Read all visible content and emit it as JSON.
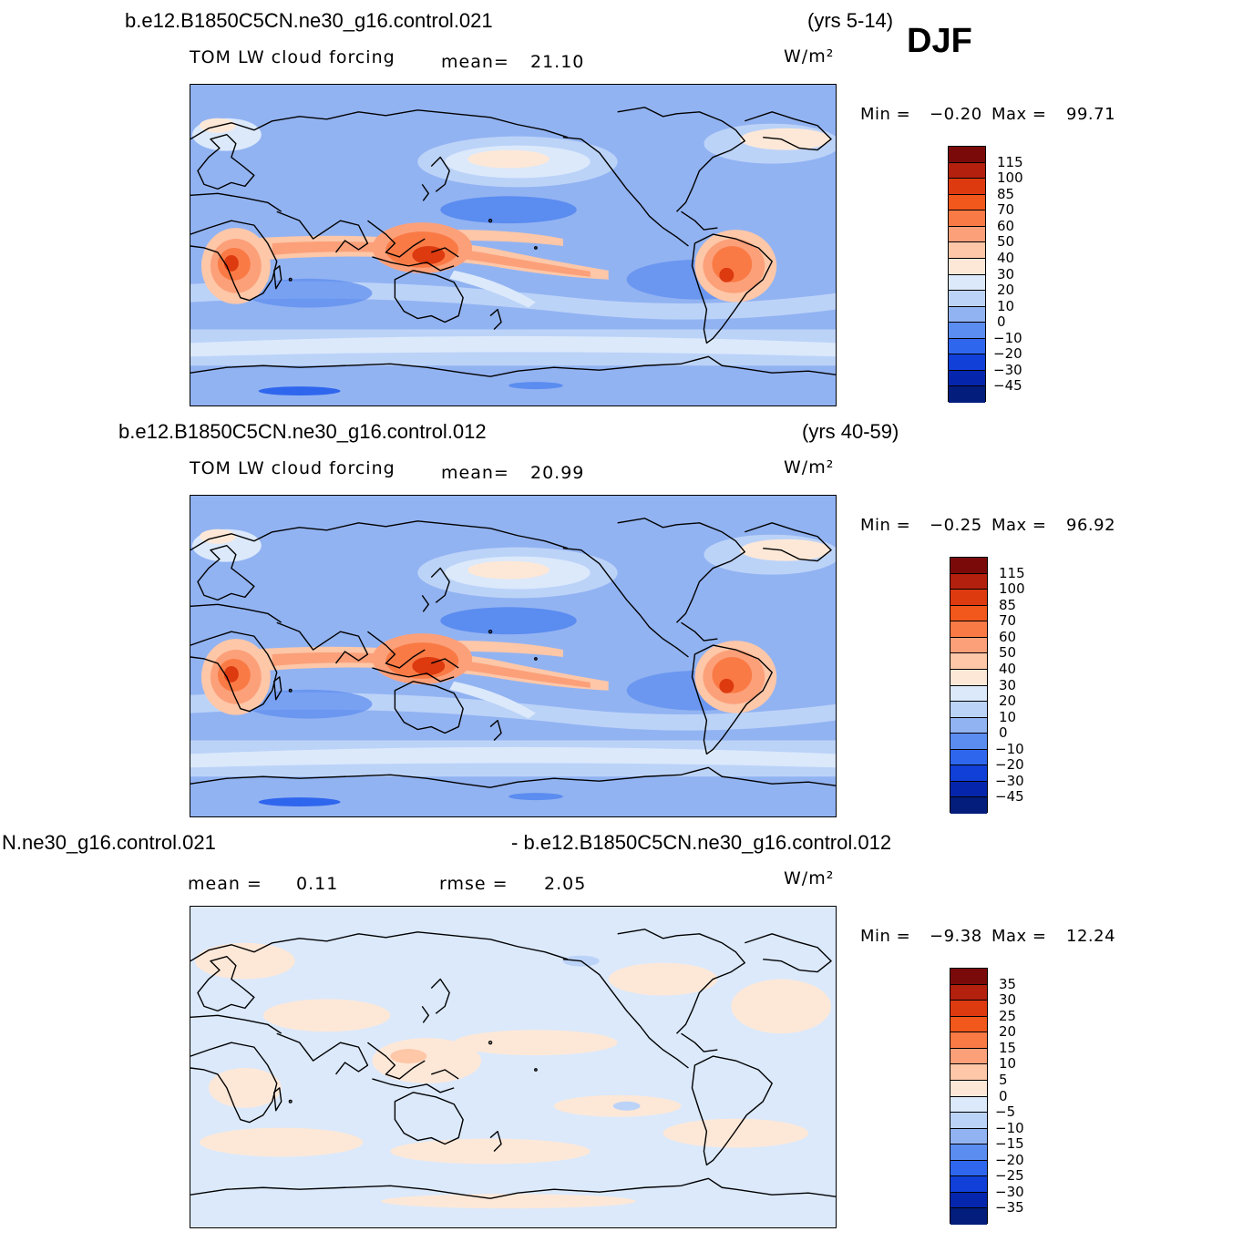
{
  "season": "DJF",
  "panels": [
    {
      "case": "b.e12.B1850C5CN.ne30_g16.control.021",
      "years": "(yrs 5-14)",
      "variable": "TOM LW cloud forcing",
      "mean_label": "mean=",
      "mean_value": "21.10",
      "units": "W/m²",
      "min_label": "Min =",
      "min_value": "−0.20",
      "max_label": "Max =",
      "max_value": "99.71",
      "colorbar": {
        "labels": [
          "115",
          "100",
          "85",
          "70",
          "60",
          "50",
          "40",
          "30",
          "20",
          "10",
          "0",
          "−10",
          "−20",
          "−30",
          "−45"
        ],
        "colors": [
          "#7a0a0a",
          "#b3200e",
          "#dd3a10",
          "#f2571c",
          "#fa7a45",
          "#fca07a",
          "#fdc7a8",
          "#fde8d8",
          "#dbe9fb",
          "#bcd3f8",
          "#92b3f2",
          "#5b8cf0",
          "#2f66ee",
          "#1040d8",
          "#0526ac",
          "#031d7c"
        ]
      }
    },
    {
      "case": "b.e12.B1850C5CN.ne30_g16.control.012",
      "years": "(yrs 40-59)",
      "variable": "TOM LW cloud forcing",
      "mean_label": "mean=",
      "mean_value": "20.99",
      "units": "W/m²",
      "min_label": "Min =",
      "min_value": "−0.25",
      "max_label": "Max =",
      "max_value": "96.92",
      "colorbar": {
        "labels": [
          "115",
          "100",
          "85",
          "70",
          "60",
          "50",
          "40",
          "30",
          "20",
          "10",
          "0",
          "−10",
          "−20",
          "−30",
          "−45"
        ],
        "colors": [
          "#7a0a0a",
          "#b3200e",
          "#dd3a10",
          "#f2571c",
          "#fa7a45",
          "#fca07a",
          "#fdc7a8",
          "#fde8d8",
          "#dbe9fb",
          "#bcd3f8",
          "#92b3f2",
          "#5b8cf0",
          "#2f66ee",
          "#1040d8",
          "#0526ac",
          "#031d7c"
        ]
      }
    },
    {
      "case_left": "N.ne30_g16.control.021",
      "case_right": "- b.e12.B1850C5CN.ne30_g16.control.012",
      "mean_label": "mean =",
      "mean_value": "0.11",
      "rmse_label": "rmse =",
      "rmse_value": "2.05",
      "units": "W/m²",
      "min_label": "Min =",
      "min_value": "−9.38",
      "max_label": "Max =",
      "max_value": "12.24",
      "colorbar": {
        "labels": [
          "35",
          "30",
          "25",
          "20",
          "15",
          "10",
          "5",
          "0",
          "−5",
          "−10",
          "−15",
          "−20",
          "−25",
          "−30",
          "−35"
        ],
        "colors": [
          "#7a0a0a",
          "#b3200e",
          "#dd3a10",
          "#f2571c",
          "#fa7a45",
          "#fca07a",
          "#fdc7a8",
          "#fde8d8",
          "#dbe9fb",
          "#bcd3f8",
          "#92b3f2",
          "#5b8cf0",
          "#2f66ee",
          "#1040d8",
          "#0526ac",
          "#031d7c"
        ]
      }
    }
  ],
  "colors": {
    "ocean_base": "#92b3f2",
    "light_blue": "#bcd3f8",
    "pale_blue": "#dbe9fb",
    "cream": "#fde8d8",
    "peach": "#fdc7a8",
    "salmon": "#fca07a",
    "orange": "#fa7a45",
    "red": "#dd3a10",
    "mid_blue": "#5b8cf0",
    "coastline": "#000000"
  }
}
